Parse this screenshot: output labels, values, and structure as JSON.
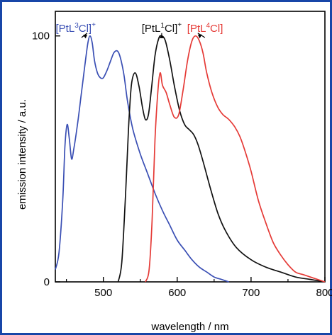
{
  "chart_data": {
    "type": "line",
    "xlabel": "wavelength / nm",
    "ylabel": "emission intensity / a.u.",
    "xlim": [
      435,
      800
    ],
    "ylim": [
      0,
      110
    ],
    "x_ticks": [
      500,
      600,
      700,
      800
    ],
    "y_ticks": [
      0,
      100
    ],
    "grid": false,
    "series": [
      {
        "name": "[PtL3Cl]+",
        "color": "#3a4fb4",
        "x": [
          435,
          440,
          445,
          448,
          451,
          454,
          457,
          460,
          465,
          470,
          475,
          479,
          482,
          485,
          488,
          492,
          496,
          500,
          505,
          510,
          514,
          518,
          521,
          524,
          528,
          533,
          540,
          550,
          560,
          570,
          580,
          590,
          600,
          610,
          620,
          630,
          640,
          650,
          660,
          670
        ],
        "y": [
          5,
          12,
          33,
          55,
          64,
          58,
          50,
          54,
          64,
          76,
          88,
          97,
          100,
          97,
          90,
          85,
          83,
          83,
          86,
          90,
          93,
          94,
          93,
          90,
          84,
          73,
          62,
          52,
          44,
          36,
          29,
          23,
          17,
          13,
          9,
          6,
          4,
          2,
          1,
          0
        ]
      },
      {
        "name": "[PtL1Cl]+",
        "color": "#111111",
        "x": [
          520,
          525,
          530,
          534,
          538,
          543,
          548,
          553,
          557,
          561,
          565,
          570,
          575,
          579,
          584,
          590,
          596,
          603,
          610,
          616,
          622,
          628,
          635,
          645,
          655,
          665,
          680,
          700,
          720,
          740,
          760,
          780,
          800
        ],
        "y": [
          0,
          8,
          35,
          62,
          80,
          85,
          80,
          71,
          66,
          68,
          78,
          92,
          99,
          100,
          98,
          90,
          80,
          70,
          64,
          62,
          60,
          56,
          49,
          38,
          28,
          21,
          14,
          9,
          6,
          4,
          2,
          1,
          0
        ]
      },
      {
        "name": "[PtL4Cl]",
        "color": "#e53a36",
        "x": [
          557,
          562,
          566,
          570,
          574,
          577,
          580,
          585,
          590,
          596,
          602,
          608,
          614,
          620,
          625,
          630,
          635,
          640,
          647,
          655,
          662,
          670,
          678,
          685,
          692,
          700,
          710,
          720,
          730,
          740,
          750,
          760,
          770,
          780,
          790,
          800
        ],
        "y": [
          0,
          5,
          25,
          58,
          78,
          85,
          80,
          77,
          72,
          67,
          68,
          78,
          90,
          98,
          100,
          98,
          93,
          85,
          77,
          71,
          68,
          66,
          63,
          59,
          53,
          45,
          33,
          24,
          16,
          11,
          7,
          4,
          3,
          2,
          1,
          0
        ]
      }
    ],
    "labels": [
      {
        "text": "[PtL",
        "sup": "3",
        "mid": "Cl]",
        "tail": "+",
        "color": "#3a4fb4",
        "peak_x": 482
      },
      {
        "text": "[PtL",
        "sup": "1",
        "mid": "Cl]",
        "tail": "+",
        "color": "#111111",
        "peak_x": 579
      },
      {
        "text": "[PtL",
        "sup": "4",
        "mid": "Cl]",
        "tail": "",
        "color": "#e53a36",
        "peak_x": 625
      }
    ]
  }
}
